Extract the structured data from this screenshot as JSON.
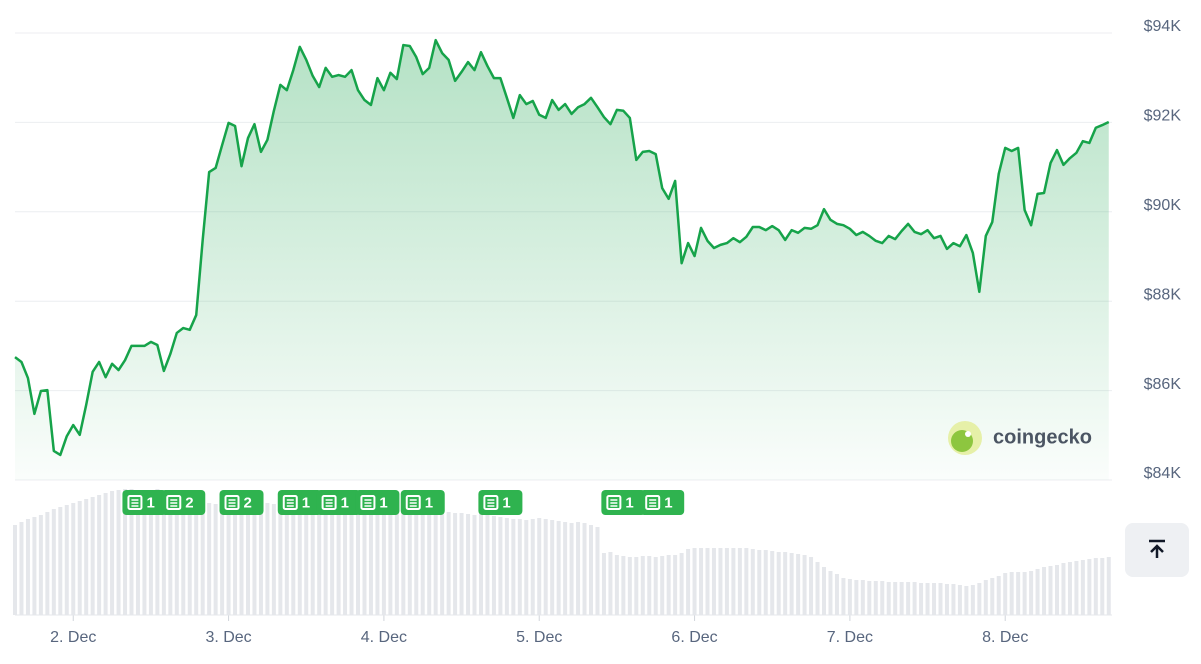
{
  "chart_data": {
    "type": "line",
    "color": "#16a34a",
    "volume_color": "#e5e7eb",
    "grid": true,
    "watermark": "coingecko",
    "xlim": [
      15,
      184.5
    ],
    "xticks": [
      {
        "value": 24,
        "label": "2. Dec"
      },
      {
        "value": 48,
        "label": "3. Dec"
      },
      {
        "value": 72,
        "label": "4. Dec"
      },
      {
        "value": 96,
        "label": "5. Dec"
      },
      {
        "value": 120,
        "label": "6. Dec"
      },
      {
        "value": 144,
        "label": "7. Dec"
      },
      {
        "value": 168,
        "label": "8. Dec"
      }
    ],
    "ylim": [
      84,
      94
    ],
    "yticks": [
      {
        "value": 84,
        "label": "$84K"
      },
      {
        "value": 86,
        "label": "$86K"
      },
      {
        "value": 88,
        "label": "$88K"
      },
      {
        "value": 90,
        "label": "$90K"
      },
      {
        "value": 92,
        "label": "$92K"
      },
      {
        "value": 94,
        "label": "$94K"
      }
    ],
    "x": [
      15,
      16,
      17,
      18,
      19,
      20,
      21,
      22,
      23,
      24,
      25,
      26,
      27,
      28,
      29,
      30,
      31,
      32,
      33,
      34,
      35,
      36,
      37,
      38,
      39,
      40,
      41,
      42,
      43,
      44,
      45,
      46,
      47,
      48,
      49,
      50,
      51,
      52,
      53,
      54,
      55,
      56,
      57,
      58,
      59,
      60,
      61,
      62,
      63,
      64,
      65,
      66,
      67,
      68,
      69,
      70,
      71,
      72,
      73,
      74,
      75,
      76,
      77,
      78,
      79,
      80,
      81,
      82,
      83,
      84,
      85,
      86,
      87,
      88,
      89,
      90,
      91,
      92,
      93,
      94,
      95,
      96,
      97,
      98,
      99,
      100,
      101,
      102,
      103,
      104,
      105,
      106,
      107,
      108,
      109,
      110,
      111,
      112,
      113,
      114,
      115,
      116,
      117,
      118,
      119,
      120,
      121,
      122,
      123,
      124,
      125,
      126,
      127,
      128,
      129,
      130,
      131,
      132,
      133,
      134,
      135,
      136,
      137,
      138,
      139,
      140,
      141,
      142,
      143,
      144,
      145,
      146,
      147,
      148,
      149,
      150,
      151,
      152,
      153,
      154,
      155,
      156,
      157,
      158,
      159,
      160,
      161,
      162,
      163,
      164,
      165,
      166,
      167,
      168,
      169,
      170,
      171,
      172,
      173,
      174,
      175,
      176,
      177,
      178,
      179,
      180,
      181,
      182,
      183,
      184
    ],
    "values": [
      86.75,
      86.64,
      86.28,
      85.48,
      85.99,
      86.01,
      84.65,
      84.56,
      84.98,
      85.23,
      85.01,
      85.68,
      86.42,
      86.64,
      86.3,
      86.6,
      86.46,
      86.68,
      87.0,
      87.0,
      87.0,
      87.09,
      87.02,
      86.44,
      86.82,
      87.29,
      87.4,
      87.36,
      87.69,
      89.37,
      90.89,
      90.98,
      91.49,
      91.99,
      91.92,
      91.02,
      91.65,
      91.96,
      91.34,
      91.61,
      92.26,
      92.84,
      92.72,
      93.17,
      93.69,
      93.4,
      93.04,
      92.79,
      93.22,
      93.02,
      93.06,
      93.02,
      93.17,
      92.72,
      92.5,
      92.39,
      92.99,
      92.72,
      93.11,
      92.97,
      93.73,
      93.71,
      93.46,
      93.08,
      93.22,
      93.84,
      93.55,
      93.4,
      92.93,
      93.13,
      93.35,
      93.17,
      93.57,
      93.26,
      92.99,
      92.99,
      92.55,
      92.1,
      92.61,
      92.41,
      92.48,
      92.17,
      92.1,
      92.5,
      92.28,
      92.41,
      92.19,
      92.34,
      92.41,
      92.55,
      92.34,
      92.12,
      91.96,
      92.28,
      92.26,
      92.1,
      91.16,
      91.34,
      91.36,
      91.29,
      90.53,
      90.29,
      90.69,
      88.85,
      89.3,
      89.01,
      89.64,
      89.35,
      89.19,
      89.26,
      89.3,
      89.41,
      89.32,
      89.44,
      89.66,
      89.66,
      89.59,
      89.68,
      89.59,
      89.37,
      89.59,
      89.53,
      89.64,
      89.62,
      89.7,
      90.06,
      89.82,
      89.73,
      89.7,
      89.62,
      89.48,
      89.55,
      89.46,
      89.35,
      89.3,
      89.46,
      89.39,
      89.57,
      89.73,
      89.55,
      89.5,
      89.59,
      89.41,
      89.46,
      89.17,
      89.3,
      89.23,
      89.48,
      89.08,
      88.21,
      89.46,
      89.77,
      90.85,
      91.43,
      91.36,
      91.43,
      90.04,
      89.7,
      90.4,
      90.42,
      91.09,
      91.38,
      91.05,
      91.2,
      91.32,
      91.58,
      91.54,
      91.88,
      91.94,
      92.01
    ],
    "volume": [
      90,
      93,
      96,
      98,
      100,
      103,
      106,
      108,
      110,
      112,
      114,
      116,
      118,
      120,
      122,
      124,
      125,
      126,
      126,
      125,
      124,
      125,
      126,
      124,
      123,
      125,
      124,
      122,
      120,
      118,
      112,
      111,
      110,
      112,
      113,
      111,
      110,
      109,
      110,
      112,
      111,
      110,
      109,
      110,
      111,
      112,
      110,
      109,
      108,
      110,
      111,
      110,
      109,
      108,
      107,
      108,
      109,
      110,
      108,
      107,
      106,
      108,
      107,
      106,
      105,
      104,
      104,
      103,
      102,
      102,
      101,
      100,
      101,
      100,
      99,
      98,
      97,
      96,
      96,
      95,
      96,
      97,
      96,
      95,
      94,
      93,
      92,
      93,
      92,
      90,
      88,
      62,
      63,
      60,
      59,
      58,
      58,
      59,
      59,
      58,
      59,
      60,
      60,
      62,
      66,
      67,
      67,
      67,
      67,
      67,
      67,
      67,
      67,
      67,
      66,
      65,
      65,
      64,
      63,
      63,
      62,
      61,
      60,
      58,
      53,
      48,
      44,
      41,
      37,
      36,
      35,
      35,
      34,
      34,
      34,
      33,
      33,
      33,
      33,
      33,
      32,
      32,
      32,
      32,
      31,
      31,
      30,
      29,
      30,
      32,
      35,
      37,
      39,
      42,
      43,
      43,
      43,
      44,
      46,
      48,
      49,
      50,
      52,
      53,
      54,
      55,
      56,
      57,
      57,
      58
    ],
    "news": [
      {
        "x": 35,
        "count": 1
      },
      {
        "x": 41,
        "count": 2
      },
      {
        "x": 50,
        "count": 2
      },
      {
        "x": 59,
        "count": 1
      },
      {
        "x": 65,
        "count": 1
      },
      {
        "x": 71,
        "count": 1
      },
      {
        "x": 78,
        "count": 1
      },
      {
        "x": 90,
        "count": 1
      },
      {
        "x": 109,
        "count": 1
      },
      {
        "x": 115,
        "count": 1
      }
    ]
  }
}
